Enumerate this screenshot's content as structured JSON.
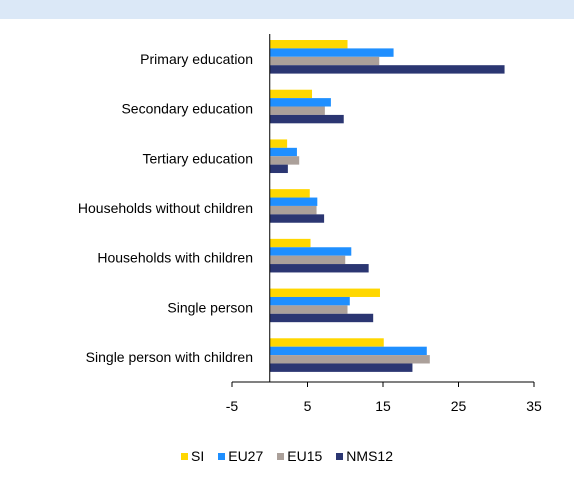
{
  "chart_data": {
    "type": "bar",
    "orientation": "horizontal",
    "categories": [
      "Primary education",
      "Secondary education",
      "Tertiary education",
      "Households without children",
      "Households with children",
      "Single person",
      "Single person with children"
    ],
    "series": [
      {
        "name": "SI",
        "color": "#ffd700",
        "values": [
          10.3,
          5.6,
          2.3,
          5.3,
          5.4,
          14.6,
          15.1
        ]
      },
      {
        "name": "EU27",
        "color": "#1f8fff",
        "values": [
          16.4,
          8.1,
          3.6,
          6.3,
          10.8,
          10.6,
          20.8
        ]
      },
      {
        "name": "EU15",
        "color": "#aba09a",
        "values": [
          14.5,
          7.3,
          3.9,
          6.2,
          10.0,
          10.3,
          21.2
        ]
      },
      {
        "name": "NMS12",
        "color": "#2b3672",
        "values": [
          31.1,
          9.8,
          2.4,
          7.2,
          13.1,
          13.7,
          18.9
        ]
      }
    ],
    "xlim": [
      -5,
      35
    ],
    "xticks": [
      "-5",
      "5",
      "15",
      "25",
      "35"
    ],
    "legend_position": "bottom",
    "grid": false
  }
}
